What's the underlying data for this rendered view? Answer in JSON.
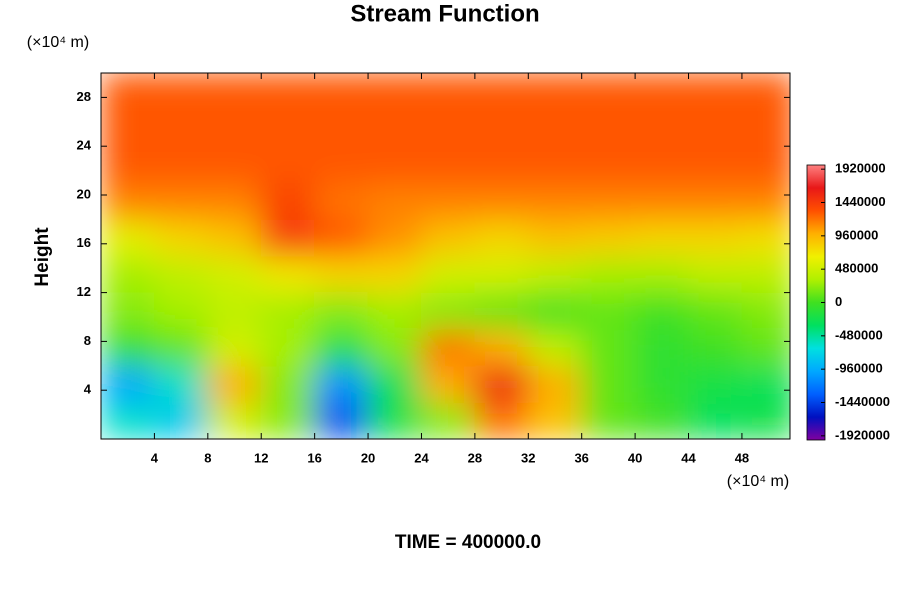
{
  "chart_data": {
    "type": "heatmap",
    "title": "Stream Function",
    "ylabel": "Height",
    "y_unit": "(×10⁴ m)",
    "x_unit": "(×10⁴ m)",
    "annotation": "TIME = 400000.0",
    "x": [
      2,
      6,
      10,
      14,
      18,
      22,
      26,
      30,
      34,
      38,
      42,
      46,
      50
    ],
    "y": [
      1.5,
      4.5,
      7.5,
      10.5,
      13.5,
      16.5,
      19.5,
      22.5,
      25.5,
      28.5
    ],
    "z": [
      [
        -600000,
        -800000,
        500000,
        200000,
        -1400000,
        -200000,
        200000,
        1200000,
        900000,
        100000,
        0,
        -300000,
        -200000
      ],
      [
        -1000000,
        -600000,
        1000000,
        200000,
        -1100000,
        -300000,
        1000000,
        1600000,
        1000000,
        100000,
        -100000,
        -200000,
        -300000
      ],
      [
        -100000,
        100000,
        500000,
        300000,
        -200000,
        200000,
        1200000,
        1000000,
        400000,
        100000,
        -100000,
        0,
        100000
      ],
      [
        200000,
        300000,
        400000,
        300000,
        200000,
        300000,
        200000,
        100000,
        0,
        100000,
        0,
        100000,
        200000
      ],
      [
        300000,
        400000,
        500000,
        700000,
        800000,
        800000,
        500000,
        500000,
        400000,
        300000,
        300000,
        400000,
        400000
      ],
      [
        600000,
        800000,
        900000,
        1450000,
        1300000,
        1100000,
        900000,
        800000,
        900000,
        850000,
        800000,
        800000,
        750000
      ],
      [
        1150000,
        1150000,
        1150000,
        1400000,
        1200000,
        1150000,
        1150000,
        1150000,
        1150000,
        1150000,
        1150000,
        1150000,
        1150000
      ],
      [
        1300000,
        1300000,
        1300000,
        1300000,
        1300000,
        1300000,
        1300000,
        1300000,
        1300000,
        1300000,
        1300000,
        1300000,
        1300000
      ],
      [
        1300000,
        1300000,
        1300000,
        1300000,
        1300000,
        1300000,
        1300000,
        1300000,
        1300000,
        1300000,
        1300000,
        1300000,
        1300000
      ],
      [
        1300000,
        1300000,
        1300000,
        1300000,
        1300000,
        1300000,
        1300000,
        1300000,
        1300000,
        1300000,
        1300000,
        1300000,
        1300000
      ]
    ],
    "xlim": [
      0,
      51.6
    ],
    "ylim": [
      0,
      30
    ],
    "xticks": [
      4,
      8,
      12,
      16,
      20,
      24,
      28,
      32,
      36,
      40,
      44,
      48
    ],
    "yticks": [
      4,
      8,
      12,
      16,
      20,
      24,
      28
    ],
    "clim": [
      -1980000,
      1980000
    ],
    "cticks": [
      -1920000,
      -1440000,
      -960000,
      -480000,
      0,
      480000,
      960000,
      1440000,
      1920000
    ],
    "colorscale": [
      "#8000a0",
      "#0010c0",
      "#0060ff",
      "#00a8ff",
      "#00e0e0",
      "#00e060",
      "#40e020",
      "#b0f000",
      "#f0f000",
      "#ffb000",
      "#ff5000",
      "#e81818",
      "#ff8080"
    ]
  }
}
